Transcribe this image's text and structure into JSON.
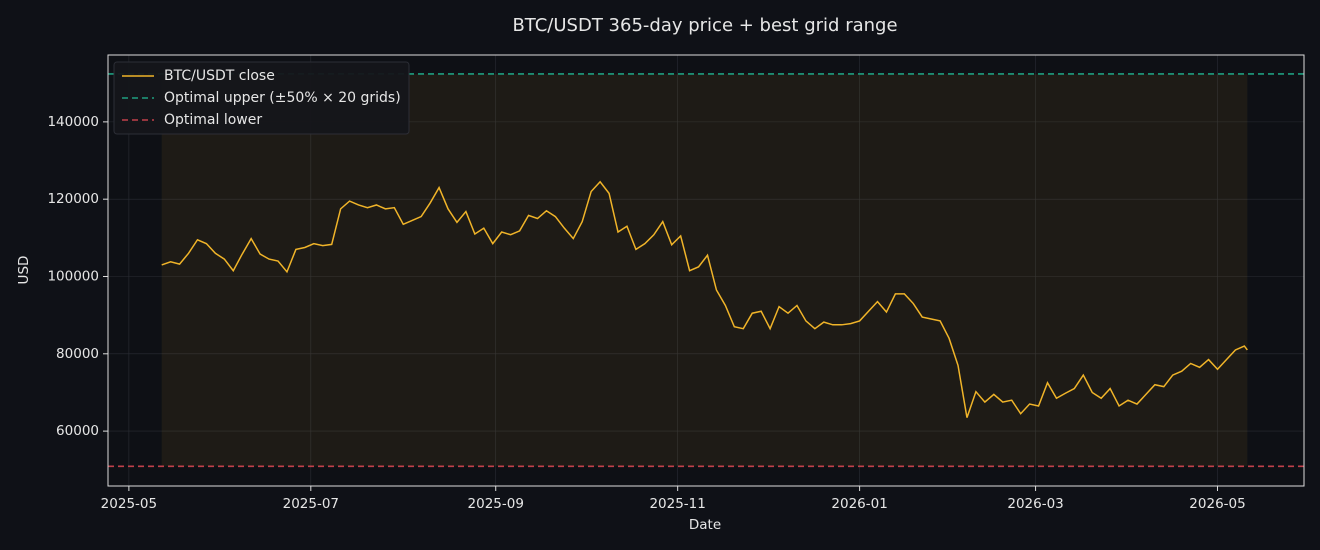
{
  "chart_data": {
    "type": "line",
    "title": "BTC/USDT 365-day price + best grid range",
    "xlabel": "Date",
    "ylabel": "USD",
    "xlim": [
      "2025-04-24",
      "2026-05-30"
    ],
    "xticks": [
      "2025-05",
      "2025-07",
      "2025-09",
      "2025-11",
      "2026-01",
      "2026-03",
      "2026-05"
    ],
    "ylim": [
      45800,
      157300
    ],
    "yticks": [
      60000,
      80000,
      100000,
      120000,
      140000
    ],
    "grid": true,
    "legend": "upper left",
    "x": [
      "2025-05-12",
      "2025-05-15",
      "2025-05-18",
      "2025-05-21",
      "2025-05-24",
      "2025-05-27",
      "2025-05-30",
      "2025-06-02",
      "2025-06-05",
      "2025-06-08",
      "2025-06-11",
      "2025-06-14",
      "2025-06-17",
      "2025-06-20",
      "2025-06-23",
      "2025-06-26",
      "2025-06-29",
      "2025-07-02",
      "2025-07-05",
      "2025-07-08",
      "2025-07-11",
      "2025-07-14",
      "2025-07-17",
      "2025-07-20",
      "2025-07-23",
      "2025-07-26",
      "2025-07-29",
      "2025-08-01",
      "2025-08-04",
      "2025-08-07",
      "2025-08-10",
      "2025-08-13",
      "2025-08-16",
      "2025-08-19",
      "2025-08-22",
      "2025-08-25",
      "2025-08-28",
      "2025-08-31",
      "2025-09-03",
      "2025-09-06",
      "2025-09-09",
      "2025-09-12",
      "2025-09-15",
      "2025-09-18",
      "2025-09-21",
      "2025-09-24",
      "2025-09-27",
      "2025-09-30",
      "2025-10-03",
      "2025-10-06",
      "2025-10-09",
      "2025-10-12",
      "2025-10-15",
      "2025-10-18",
      "2025-10-21",
      "2025-10-24",
      "2025-10-27",
      "2025-10-30",
      "2025-11-02",
      "2025-11-05",
      "2025-11-08",
      "2025-11-11",
      "2025-11-14",
      "2025-11-17",
      "2025-11-20",
      "2025-11-23",
      "2025-11-26",
      "2025-11-29",
      "2025-12-02",
      "2025-12-05",
      "2025-12-08",
      "2025-12-11",
      "2025-12-14",
      "2025-12-17",
      "2025-12-20",
      "2025-12-23",
      "2025-12-26",
      "2025-12-29",
      "2026-01-01",
      "2026-01-04",
      "2026-01-07",
      "2026-01-10",
      "2026-01-13",
      "2026-01-16",
      "2026-01-19",
      "2026-01-22",
      "2026-01-25",
      "2026-01-28",
      "2026-01-31",
      "2026-02-03",
      "2026-02-06",
      "2026-02-09",
      "2026-02-12",
      "2026-02-15",
      "2026-02-18",
      "2026-02-21",
      "2026-02-24",
      "2026-02-27",
      "2026-03-02",
      "2026-03-05",
      "2026-03-08",
      "2026-03-11",
      "2026-03-14",
      "2026-03-17",
      "2026-03-20",
      "2026-03-23",
      "2026-03-26",
      "2026-03-29",
      "2026-04-01",
      "2026-04-04",
      "2026-04-07",
      "2026-04-10",
      "2026-04-13",
      "2026-04-16",
      "2026-04-19",
      "2026-04-22",
      "2026-04-25",
      "2026-04-28",
      "2026-05-01",
      "2026-05-04",
      "2026-05-07",
      "2026-05-10",
      "2026-05-11"
    ],
    "series": [
      {
        "name": "BTC/USDT close",
        "color": "#f0b429",
        "values": [
          103000,
          103800,
          103200,
          106000,
          109500,
          108500,
          106000,
          104500,
          101500,
          105800,
          109800,
          105800,
          104500,
          104000,
          101200,
          107000,
          107500,
          108500,
          108000,
          108300,
          117500,
          119500,
          118500,
          117800,
          118500,
          117500,
          117800,
          113500,
          114500,
          115500,
          119000,
          123000,
          117500,
          114000,
          116800,
          111000,
          112500,
          108500,
          111500,
          110800,
          111800,
          115800,
          115000,
          117000,
          115500,
          112500,
          109800,
          114200,
          122000,
          124500,
          121500,
          111500,
          113000,
          107000,
          108500,
          110800,
          114200,
          108200,
          110500,
          101500,
          102500,
          105500,
          96500,
          92500,
          87000,
          86500,
          90500,
          91000,
          86500,
          92200,
          90500,
          92500,
          88500,
          86500,
          88200,
          87500,
          87500,
          87800,
          88500,
          91000,
          93500,
          90800,
          95500,
          95500,
          93000,
          89500,
          89000,
          88500,
          84000,
          77000,
          63500,
          70200,
          67500,
          69500,
          67500,
          68000,
          64500,
          67000,
          66500,
          72500,
          68500,
          69800,
          71000,
          74500,
          70000,
          68500,
          71000,
          66500,
          68000,
          67000,
          69500,
          72000,
          71500,
          74500,
          75500,
          77500,
          76500,
          78500,
          76000,
          78500,
          81000,
          82000,
          81000
        ]
      }
    ],
    "hlines": [
      {
        "name": "Optimal upper (±50% × 20 grids)",
        "color": "#1f9e80",
        "value": 152400
      },
      {
        "name": "Optimal lower",
        "color": "#c0404a",
        "value": 50900
      }
    ]
  }
}
